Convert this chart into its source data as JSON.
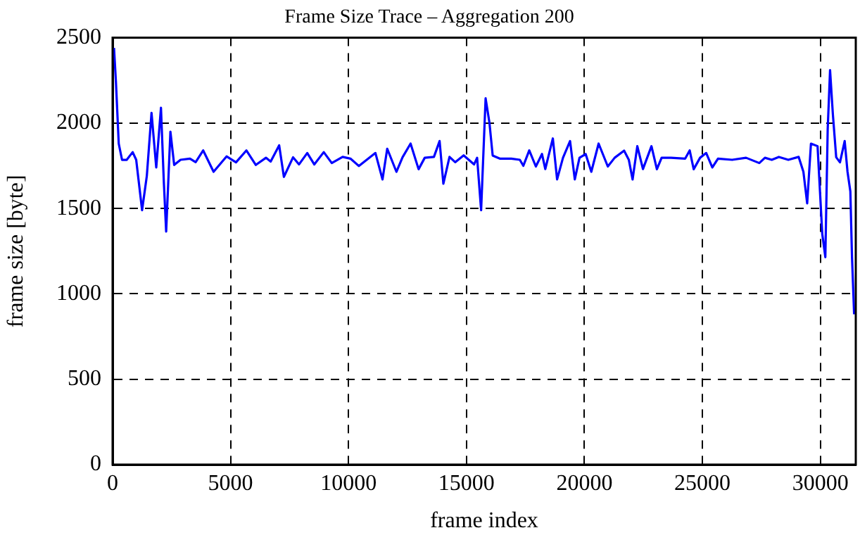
{
  "chart_data": {
    "type": "line",
    "title": "Frame Size Trace – Aggregation 200",
    "xlabel": "frame index",
    "ylabel": "frame size [byte]",
    "xlim": [
      0,
      31500
    ],
    "xticks": [
      0,
      5000,
      10000,
      15000,
      20000,
      25000,
      30000
    ],
    "ylim": [
      0,
      2500
    ],
    "yticks": [
      0,
      500,
      1000,
      1500,
      2000,
      2500
    ],
    "grid": true,
    "legend": false,
    "marker": "none",
    "line_style": "solid",
    "series": [
      {
        "color": "#0000ff",
        "x": [
          60,
          140,
          260,
          400,
          600,
          850,
          1000,
          1250,
          1450,
          1650,
          1750,
          1850,
          2050,
          2170,
          2270,
          2450,
          2610,
          2880,
          3280,
          3520,
          3840,
          4280,
          4830,
          5230,
          5670,
          6070,
          6500,
          6700,
          7060,
          7260,
          7650,
          7900,
          8250,
          8550,
          8950,
          9290,
          9750,
          10080,
          10440,
          11140,
          11440,
          11640,
          12030,
          12290,
          12630,
          12970,
          13230,
          13620,
          13860,
          14020,
          14280,
          14520,
          14880,
          15320,
          15450,
          15620,
          15810,
          15970,
          16110,
          16410,
          16900,
          17260,
          17410,
          17660,
          17940,
          18200,
          18340,
          18660,
          18840,
          19090,
          19390,
          19590,
          19790,
          20050,
          20290,
          20600,
          20990,
          21280,
          21680,
          21880,
          22040,
          22240,
          22480,
          22840,
          23070,
          23270,
          23670,
          24270,
          24460,
          24630,
          24900,
          25160,
          25420,
          25660,
          26260,
          26850,
          27410,
          27650,
          27940,
          28240,
          28640,
          29080,
          29280,
          29440,
          29600,
          29880,
          30080,
          30210,
          30310,
          30410,
          30530,
          30670,
          30830,
          31030,
          31150,
          31270,
          31340,
          31430
        ],
        "values": [
          2440,
          2245,
          1880,
          1785,
          1785,
          1830,
          1785,
          1490,
          1690,
          2060,
          1900,
          1740,
          2090,
          1660,
          1365,
          1950,
          1755,
          1785,
          1792,
          1771,
          1840,
          1715,
          1805,
          1770,
          1840,
          1755,
          1797,
          1775,
          1870,
          1685,
          1800,
          1758,
          1825,
          1758,
          1830,
          1766,
          1802,
          1792,
          1749,
          1825,
          1670,
          1850,
          1715,
          1800,
          1880,
          1730,
          1797,
          1802,
          1895,
          1645,
          1802,
          1771,
          1811,
          1758,
          1797,
          1490,
          2145,
          2005,
          1810,
          1792,
          1792,
          1785,
          1750,
          1840,
          1746,
          1819,
          1731,
          1910,
          1670,
          1797,
          1895,
          1670,
          1797,
          1819,
          1715,
          1880,
          1746,
          1797,
          1839,
          1785,
          1670,
          1865,
          1731,
          1865,
          1730,
          1797,
          1797,
          1792,
          1840,
          1730,
          1797,
          1825,
          1740,
          1792,
          1785,
          1797,
          1766,
          1797,
          1785,
          1802,
          1785,
          1802,
          1715,
          1530,
          1880,
          1865,
          1350,
          1215,
          1965,
          2310,
          2050,
          1800,
          1770,
          1895,
          1715,
          1600,
          1215,
          880
        ]
      }
    ]
  }
}
